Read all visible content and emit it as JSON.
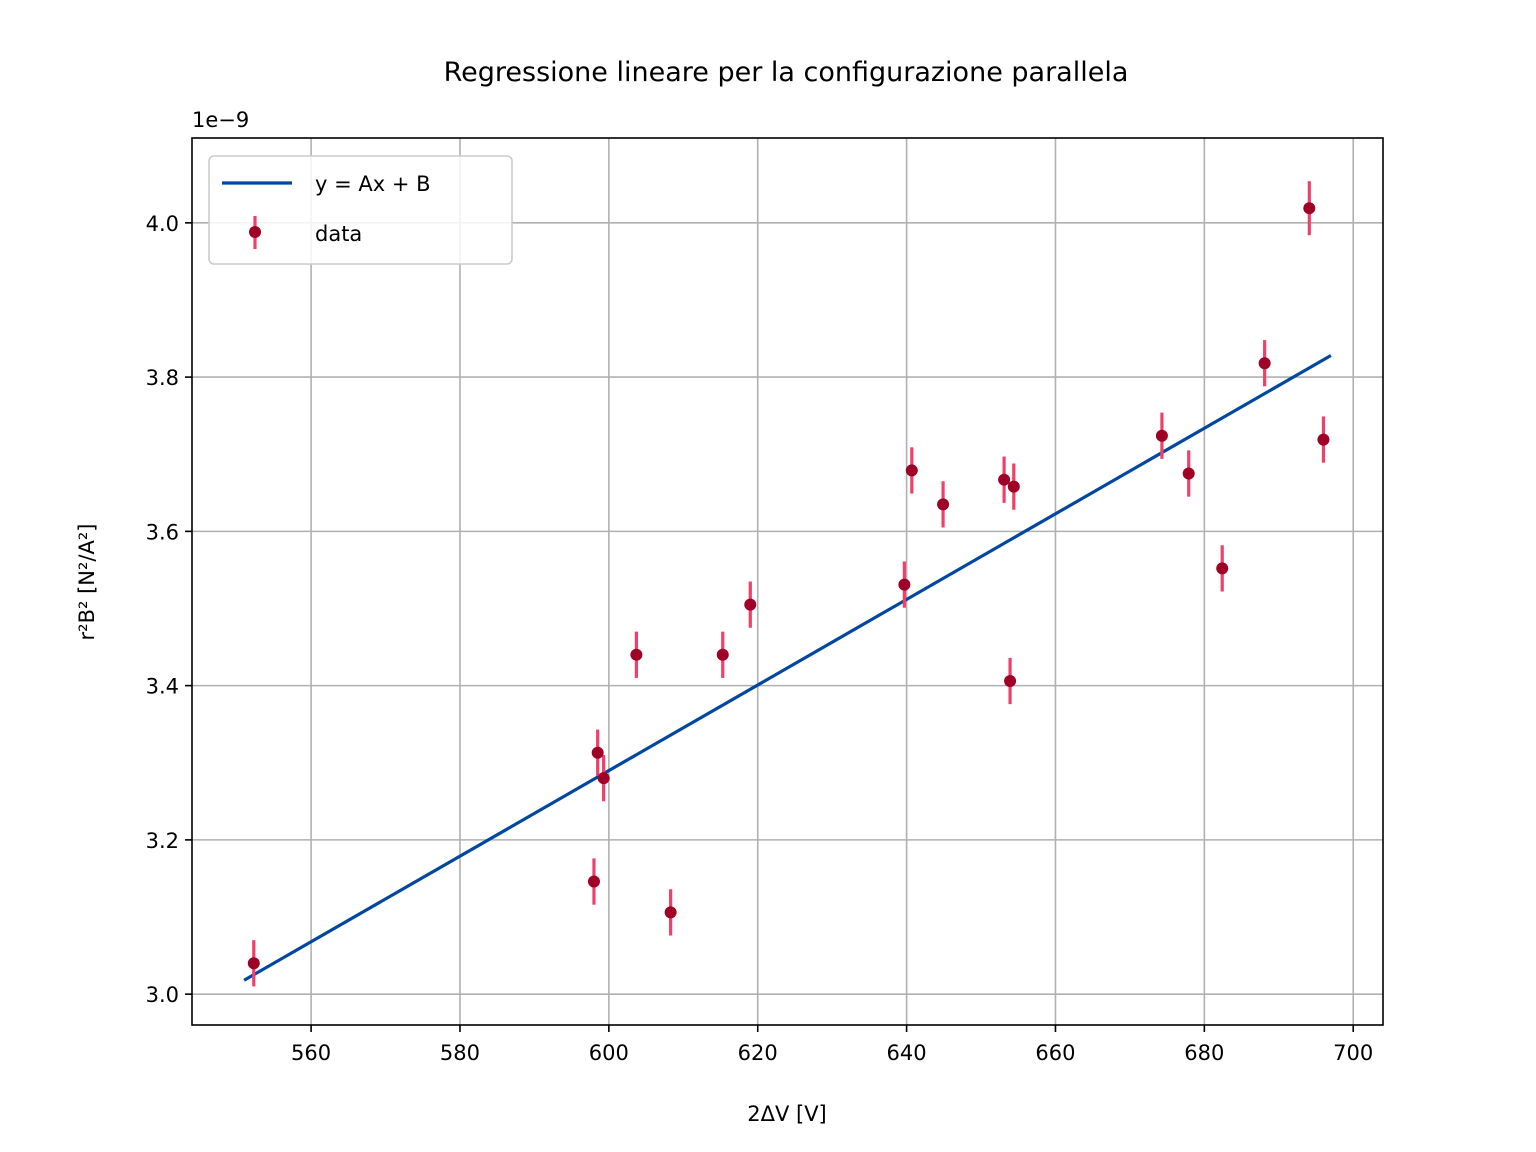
{
  "chart_data": {
    "type": "scatter",
    "title": "Regressione lineare per la configurazione parallela",
    "xlabel": "2ΔV [V]",
    "ylabel": "r²B² [N²/A²]",
    "y_offset_text": "1e−9",
    "xlim": [
      544,
      704
    ],
    "ylim": [
      2.96,
      4.11
    ],
    "y_scale_factor": 1e-09,
    "grid": true,
    "legend_position": "upper left",
    "x_ticks": [
      560,
      580,
      600,
      620,
      640,
      660,
      680,
      700
    ],
    "x_tick_labels": [
      "560",
      "580",
      "600",
      "620",
      "640",
      "660",
      "680",
      "700"
    ],
    "y_ticks": [
      3.0,
      3.2,
      3.4,
      3.6,
      3.8,
      4.0
    ],
    "y_tick_labels": [
      "3.0",
      "3.2",
      "3.4",
      "3.6",
      "3.8",
      "4.0"
    ],
    "fit": {
      "name": "y = Ax + B",
      "color": "#0047a0",
      "x": [
        551,
        697
      ],
      "y": [
        3.018,
        3.828
      ]
    },
    "series": [
      {
        "name": "data",
        "marker_color": "#a00025",
        "errorbar_color": "#f0406a",
        "x": [
          552.3,
          598.0,
          598.5,
          599.3,
          603.7,
          608.3,
          615.3,
          619.0,
          639.7,
          640.7,
          644.9,
          653.1,
          653.9,
          654.4,
          674.3,
          677.9,
          682.4,
          688.1,
          694.1,
          696.0
        ],
        "y": [
          3.04,
          3.146,
          3.313,
          3.28,
          3.44,
          3.106,
          3.44,
          3.505,
          3.531,
          3.679,
          3.635,
          3.667,
          3.406,
          3.658,
          3.724,
          3.675,
          3.552,
          3.818,
          4.019,
          3.719
        ],
        "y_err": [
          0.03,
          0.03,
          0.03,
          0.03,
          0.03,
          0.03,
          0.03,
          0.03,
          0.03,
          0.03,
          0.03,
          0.03,
          0.03,
          0.03,
          0.03,
          0.03,
          0.03,
          0.03,
          0.035,
          0.03
        ]
      }
    ]
  }
}
